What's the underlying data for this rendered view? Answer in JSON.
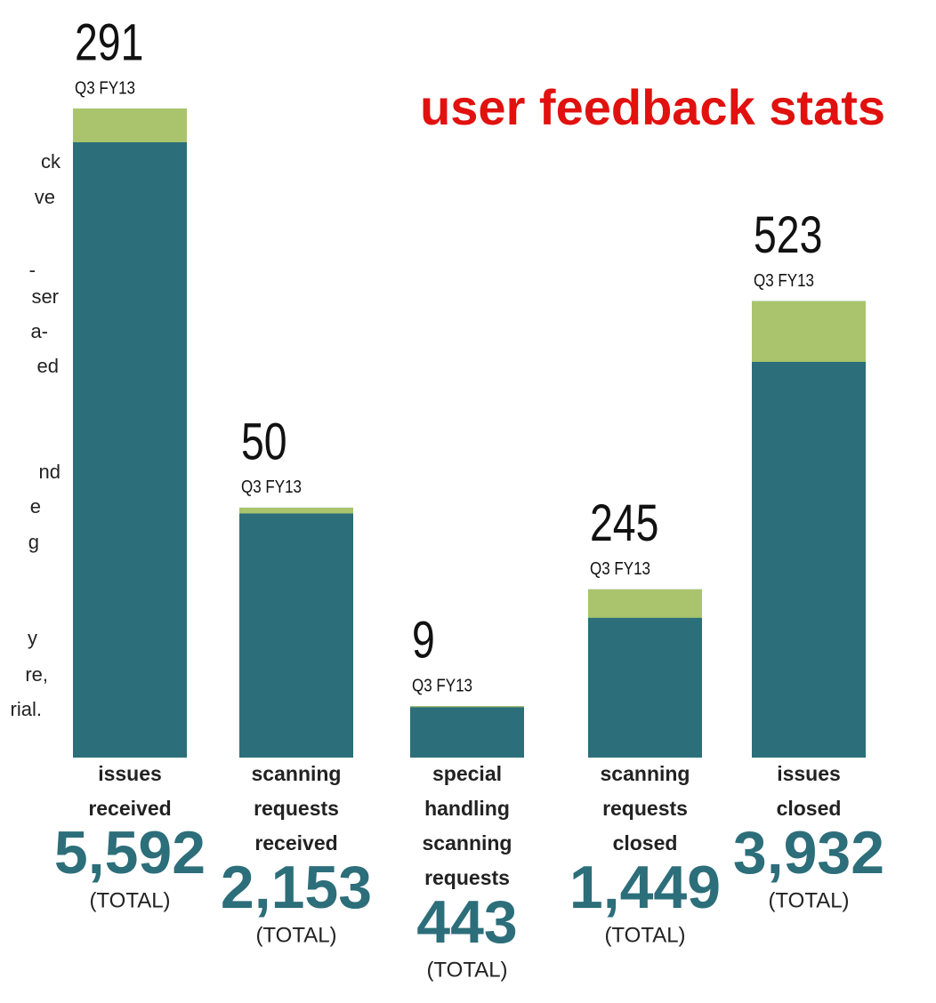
{
  "chart_data": {
    "type": "bar",
    "title": "user feedback stats",
    "categories": [
      [
        "issues",
        "received"
      ],
      [
        "scanning",
        "requests",
        "received"
      ],
      [
        "special",
        "handling",
        "scanning",
        "requests"
      ],
      [
        "scanning",
        "requests",
        "closed"
      ],
      [
        "issues",
        "closed"
      ]
    ],
    "values": [
      5592,
      2153,
      443,
      1449,
      3932
    ],
    "value_labels": [
      "5,592",
      "2,153",
      "443",
      "1,449",
      "3,932"
    ],
    "total_label": "(TOTAL)",
    "q3_values": [
      291,
      50,
      9,
      245,
      523
    ],
    "q3_label": "Q3 FY13",
    "color": "#2c6e7a",
    "q3_color": "#a9c46c",
    "title_color": "#e0110f"
  },
  "side_text": [
    "ck",
    "ve",
    "-",
    "ser",
    "a-",
    "ed",
    "nd",
    "e",
    "g",
    "y",
    "re,",
    "rial."
  ]
}
